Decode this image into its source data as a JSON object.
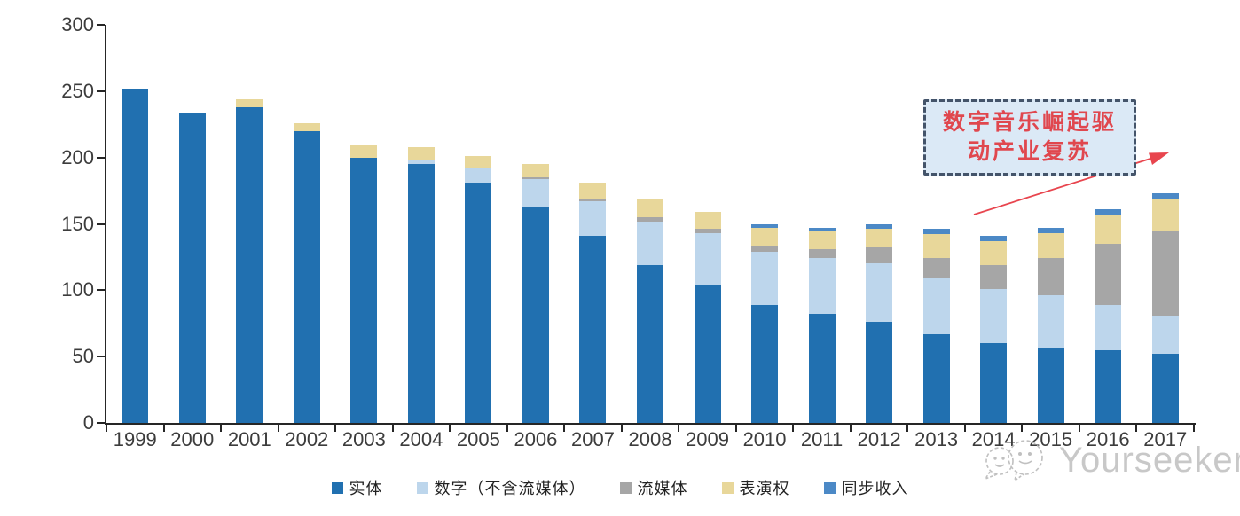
{
  "chart_data": {
    "type": "bar",
    "stacked": true,
    "title": "",
    "xlabel": "",
    "ylabel": "",
    "categories": [
      "1999",
      "2000",
      "2001",
      "2002",
      "2003",
      "2004",
      "2005",
      "2006",
      "2007",
      "2008",
      "2009",
      "2010",
      "2011",
      "2012",
      "2013",
      "2014",
      "2015",
      "2016",
      "2017"
    ],
    "series": [
      {
        "name": "实体",
        "color": "#2170b0",
        "values": [
          252,
          234,
          238,
          220,
          200,
          195,
          181,
          163,
          141,
          119,
          104,
          89,
          82,
          76,
          67,
          60,
          57,
          55,
          52
        ]
      },
      {
        "name": "数字（不含流媒体）",
        "color": "#bdd6ec",
        "values": [
          0,
          0,
          0,
          0,
          0,
          3,
          11,
          21,
          26,
          33,
          39,
          40,
          42,
          44,
          42,
          41,
          39,
          34,
          29
        ]
      },
      {
        "name": "流媒体",
        "color": "#a6a6a6",
        "values": [
          0,
          0,
          0,
          0,
          0,
          0,
          0,
          1,
          2,
          3,
          3,
          4,
          7,
          12,
          15,
          18,
          28,
          46,
          64
        ]
      },
      {
        "name": "表演权",
        "color": "#e8d79a",
        "values": [
          0,
          0,
          6,
          6,
          9,
          10,
          9,
          10,
          12,
          14,
          13,
          14,
          13,
          14,
          18,
          18,
          19,
          22,
          24
        ]
      },
      {
        "name": "同步收入",
        "color": "#4c89c6",
        "values": [
          0,
          0,
          0,
          0,
          0,
          0,
          0,
          0,
          0,
          0,
          0,
          3,
          3,
          4,
          4,
          4,
          4,
          4,
          4
        ]
      }
    ],
    "ylim": [
      0,
      300
    ],
    "yticks": [
      0,
      50,
      100,
      150,
      200,
      250,
      300
    ],
    "grid": false,
    "legend_position": "bottom",
    "axis_color": "#262626",
    "label_color": "#3c3c3c"
  },
  "annotation": {
    "text": "数字音乐崛起驱动产业复苏",
    "line1": "数字音乐崛起驱",
    "line2": "动产业复苏",
    "text_color": "#e0474e",
    "border_color": "#44546a",
    "fill_color": "#dbe9f6",
    "arrow_color": "#e8454e"
  },
  "watermark": {
    "text": "Yourseeker",
    "color": "#c6c6c6",
    "logo": "two-chat-bubbles-icon"
  }
}
